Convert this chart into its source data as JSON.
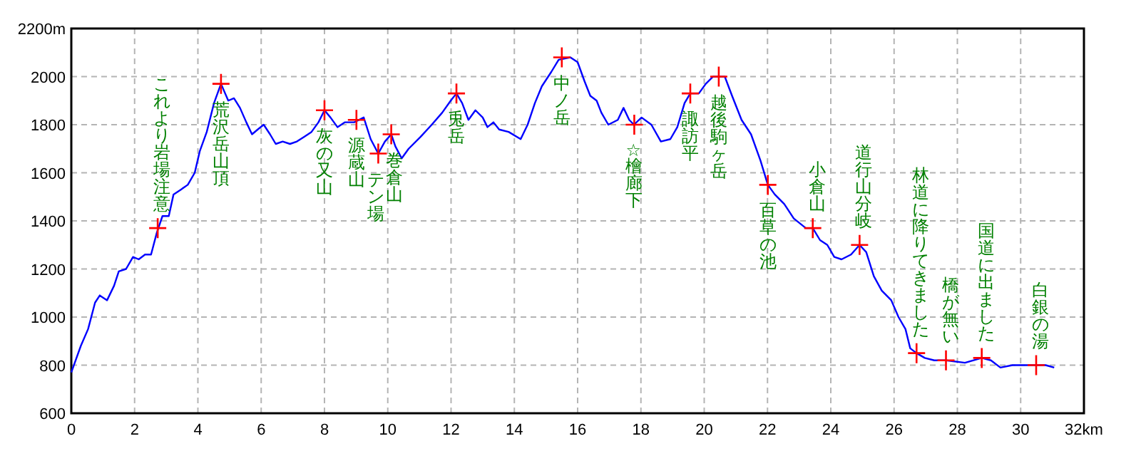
{
  "chart_data": {
    "type": "line",
    "grid": true,
    "xlim": [
      0,
      32
    ],
    "xticks": [
      0,
      2,
      4,
      6,
      8,
      10,
      12,
      14,
      16,
      18,
      20,
      22,
      24,
      26,
      28,
      30,
      {
        "value": 32,
        "label": "32km"
      }
    ],
    "ylim": [
      600,
      2200
    ],
    "yticks": [
      600,
      800,
      1000,
      1200,
      1400,
      1600,
      1800,
      2000,
      {
        "value": 2200,
        "label": "2200m"
      }
    ],
    "series": [
      {
        "type": "line",
        "color": "#0000ff",
        "marker": "none",
        "x": [
          0,
          0.3,
          0.53,
          0.75,
          0.9,
          1.13,
          1.35,
          1.5,
          1.73,
          1.95,
          2.13,
          2.33,
          2.52,
          2.7,
          2.88,
          3.08,
          3.23,
          3.46,
          3.68,
          3.9,
          4.06,
          4.28,
          4.51,
          4.73,
          4.96,
          5.14,
          5.33,
          5.53,
          5.71,
          5.89,
          6.08,
          6.28,
          6.46,
          6.68,
          6.91,
          7.13,
          7.36,
          7.59,
          7.81,
          8.0,
          8.19,
          8.41,
          8.64,
          8.94,
          9.24,
          9.46,
          9.7,
          9.91,
          10.11,
          10.24,
          10.44,
          10.66,
          11.04,
          11.39,
          11.72,
          11.99,
          12.17,
          12.35,
          12.55,
          12.77,
          13.0,
          13.15,
          13.34,
          13.52,
          13.82,
          14.2,
          14.42,
          14.65,
          14.87,
          15.17,
          15.4,
          15.77,
          16.0,
          16.22,
          16.4,
          16.6,
          16.75,
          16.97,
          17.27,
          17.45,
          17.63,
          17.78,
          18.02,
          18.33,
          18.63,
          18.93,
          19.15,
          19.38,
          19.56,
          19.83,
          20.05,
          20.28,
          20.65,
          20.88,
          21.18,
          21.48,
          21.78,
          22.01,
          22.23,
          22.53,
          22.83,
          23.21,
          23.43,
          23.66,
          23.89,
          24.11,
          24.34,
          24.64,
          24.91,
          25.12,
          25.36,
          25.61,
          25.91,
          26.14,
          26.36,
          26.51,
          26.71,
          26.97,
          27.27,
          27.64,
          28.24,
          28.77,
          29.06,
          29.36,
          29.74,
          30.19,
          30.79,
          31.06
        ],
        "values": [
          770,
          880,
          950,
          1060,
          1090,
          1070,
          1130,
          1190,
          1200,
          1250,
          1240,
          1260,
          1260,
          1350,
          1420,
          1420,
          1510,
          1530,
          1550,
          1600,
          1690,
          1770,
          1890,
          1970,
          1900,
          1910,
          1870,
          1810,
          1760,
          1780,
          1800,
          1760,
          1720,
          1730,
          1720,
          1730,
          1750,
          1770,
          1810,
          1860,
          1830,
          1790,
          1810,
          1810,
          1830,
          1740,
          1680,
          1730,
          1760,
          1710,
          1660,
          1700,
          1750,
          1800,
          1850,
          1900,
          1930,
          1890,
          1820,
          1860,
          1830,
          1790,
          1810,
          1780,
          1770,
          1740,
          1800,
          1890,
          1960,
          2020,
          2070,
          2080,
          2060,
          1980,
          1920,
          1900,
          1850,
          1800,
          1820,
          1870,
          1820,
          1800,
          1830,
          1800,
          1730,
          1740,
          1790,
          1890,
          1930,
          1930,
          1970,
          2000,
          2000,
          1920,
          1820,
          1760,
          1650,
          1550,
          1510,
          1470,
          1410,
          1370,
          1370,
          1320,
          1300,
          1250,
          1240,
          1260,
          1300,
          1270,
          1170,
          1110,
          1070,
          1000,
          950,
          870,
          850,
          830,
          820,
          820,
          810,
          830,
          820,
          790,
          800,
          800,
          800,
          790
        ]
      },
      {
        "type": "scatter",
        "color": "#ff0000",
        "marker": "cross",
        "x": [
          2.73,
          4.73,
          8.0,
          9.01,
          9.7,
          10.11,
          12.17,
          15.5,
          17.79,
          19.56,
          20.46,
          22.01,
          23.43,
          24.91,
          26.71,
          27.64,
          28.77,
          30.49
        ],
        "values": [
          1370,
          1970,
          1860,
          1820,
          1680,
          1760,
          1930,
          2080,
          1800,
          1930,
          2000,
          1550,
          1370,
          1300,
          850,
          820,
          830,
          800
        ]
      }
    ],
    "annotations": [
      {
        "text": "これより岩場注意",
        "x": 2.73,
        "y": 1370
      },
      {
        "text": "荒沢岳山頂",
        "x": 4.73,
        "y": 1970
      },
      {
        "text": "灰の又山",
        "x": 8.0,
        "y": 1860
      },
      {
        "text": "源蔵山",
        "x": 9.01,
        "y": 1820
      },
      {
        "text": "テン場",
        "x": 9.7,
        "y": 1680
      },
      {
        "text": "巻倉山",
        "x": 10.11,
        "y": 1760
      },
      {
        "text": "兎岳",
        "x": 12.17,
        "y": 1930
      },
      {
        "text": "中ノ岳",
        "x": 15.5,
        "y": 2080
      },
      {
        "text": "☆檜廊下",
        "x": 17.79,
        "y": 1800
      },
      {
        "text": "諏訪平",
        "x": 19.56,
        "y": 1930
      },
      {
        "text": "越後駒ヶ岳",
        "x": 20.46,
        "y": 2000
      },
      {
        "text": "百草の池",
        "x": 22.01,
        "y": 1550
      },
      {
        "text": "小倉山",
        "x": 23.43,
        "y": 1370
      },
      {
        "text": "道行山分岐",
        "x": 24.91,
        "y": 1300
      },
      {
        "text": "林道に降りてきました",
        "x": 26.71,
        "y": 850
      },
      {
        "text": "橋が無い",
        "x": 27.64,
        "y": 820
      },
      {
        "text": "国道に出ました",
        "x": 28.77,
        "y": 830
      },
      {
        "text": "白銀の湯",
        "x": 30.49,
        "y": 800
      }
    ]
  }
}
